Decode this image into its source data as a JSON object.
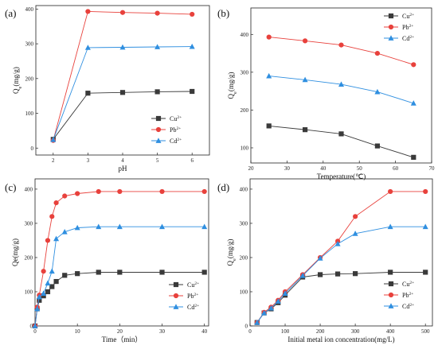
{
  "chart_data": [
    {
      "panel": "(a)",
      "type": "line",
      "xlabel": "pH",
      "ylabel": "Q",
      "ylabel_sub": "e",
      "ylabel_unit": "(mg/g)",
      "xlim": [
        1.5,
        6.5
      ],
      "ylim": [
        -20,
        410
      ],
      "xticks": [
        "2",
        "3",
        "4",
        "5",
        "6"
      ],
      "yticks": [
        "0",
        "100",
        "200",
        "300",
        "400"
      ],
      "legend_position": "bottom-right",
      "series": [
        {
          "name": "Cu",
          "sup": "2+",
          "marker": "square",
          "color": "#3a3a3a",
          "x": [
            2,
            3,
            4,
            5,
            6
          ],
          "y": [
            25,
            158,
            160,
            162,
            163
          ]
        },
        {
          "name": "Pb",
          "sup": "2+",
          "marker": "circle",
          "color": "#e8413c",
          "x": [
            2,
            3,
            4,
            5,
            6
          ],
          "y": [
            22,
            393,
            390,
            388,
            385
          ]
        },
        {
          "name": "Cd",
          "sup": "2+",
          "marker": "triangle",
          "color": "#2f8fe0",
          "x": [
            2,
            3,
            4,
            5,
            6
          ],
          "y": [
            24,
            289,
            290,
            291,
            292
          ]
        }
      ]
    },
    {
      "panel": "(b)",
      "type": "line",
      "xlabel": "Temperature(℃)",
      "ylabel": "Q",
      "ylabel_sub": "e",
      "ylabel_unit": "(mg/g)",
      "xlim": [
        20,
        70
      ],
      "ylim": [
        60,
        470
      ],
      "xticks": [
        "20",
        "30",
        "40",
        "50",
        "60",
        "70"
      ],
      "yticks": [
        "100",
        "200",
        "300",
        "400"
      ],
      "legend_position": "top-right",
      "series": [
        {
          "name": "Cu",
          "sup": "2+",
          "marker": "square",
          "color": "#3a3a3a",
          "x": [
            25,
            35,
            45,
            55,
            65
          ],
          "y": [
            158,
            148,
            137,
            105,
            75
          ]
        },
        {
          "name": "Pb",
          "sup": "2+",
          "marker": "circle",
          "color": "#e8413c",
          "x": [
            25,
            35,
            45,
            55,
            65
          ],
          "y": [
            393,
            383,
            372,
            350,
            320
          ]
        },
        {
          "name": "Cd",
          "sup": "2+",
          "marker": "triangle",
          "color": "#2f8fe0",
          "x": [
            25,
            35,
            45,
            55,
            65
          ],
          "y": [
            290,
            280,
            268,
            248,
            218
          ]
        }
      ]
    },
    {
      "panel": "(c)",
      "type": "line",
      "xlabel": "Time（min）",
      "ylabel": "Qe(mg/g)",
      "ylabel_sub": "",
      "ylabel_unit": "",
      "xlim": [
        0,
        41
      ],
      "ylim": [
        0,
        430
      ],
      "xticks": [
        "0",
        "10",
        "20",
        "30",
        "40"
      ],
      "yticks": [
        "0",
        "100",
        "200",
        "300",
        "400"
      ],
      "legend_position": "bottom-right",
      "series": [
        {
          "name": "Cu",
          "sup": "2+",
          "marker": "square",
          "color": "#3a3a3a",
          "x": [
            0,
            0.5,
            1,
            2,
            3,
            4,
            5,
            7,
            10,
            15,
            20,
            30,
            40
          ],
          "y": [
            0,
            50,
            75,
            88,
            100,
            115,
            130,
            148,
            153,
            157,
            157,
            157,
            157
          ]
        },
        {
          "name": "Pb",
          "sup": "2+",
          "marker": "circle",
          "color": "#e8413c",
          "x": [
            0,
            0.5,
            1,
            2,
            3,
            4,
            5,
            7,
            10,
            15,
            20,
            30,
            40
          ],
          "y": [
            0,
            55,
            90,
            160,
            250,
            320,
            360,
            380,
            387,
            393,
            393,
            393,
            393
          ]
        },
        {
          "name": "Cd",
          "sup": "2+",
          "marker": "triangle",
          "color": "#2f8fe0",
          "x": [
            0,
            0.5,
            1,
            2,
            3,
            4,
            5,
            7,
            10,
            15,
            20,
            30,
            40
          ],
          "y": [
            0,
            50,
            85,
            95,
            125,
            160,
            255,
            275,
            287,
            290,
            290,
            290,
            290
          ]
        }
      ]
    },
    {
      "panel": "(d)",
      "type": "line",
      "xlabel": "Initial metal ion concentration(mg/L)",
      "ylabel": "Q",
      "ylabel_sub": "e",
      "ylabel_unit": "(mg/g)",
      "xlim": [
        0,
        520
      ],
      "ylim": [
        0,
        430
      ],
      "xticks": [
        "0",
        "100",
        "200",
        "300",
        "400",
        "500"
      ],
      "yticks": [
        "0",
        "100",
        "200",
        "300",
        "400"
      ],
      "legend_position": "bottom-right",
      "series": [
        {
          "name": "Cu",
          "sup": "2+",
          "marker": "square",
          "color": "#3a3a3a",
          "x": [
            20,
            40,
            60,
            80,
            100,
            150,
            200,
            250,
            300,
            400,
            500
          ],
          "y": [
            10,
            38,
            50,
            68,
            90,
            143,
            150,
            152,
            153,
            157,
            157
          ]
        },
        {
          "name": "Pb",
          "sup": "2+",
          "marker": "circle",
          "color": "#e8413c",
          "x": [
            20,
            40,
            60,
            80,
            100,
            150,
            200,
            250,
            300,
            400,
            500
          ],
          "y": [
            10,
            40,
            55,
            75,
            100,
            150,
            200,
            248,
            320,
            393,
            393
          ]
        },
        {
          "name": "Cd",
          "sup": "2+",
          "marker": "triangle",
          "color": "#2f8fe0",
          "x": [
            20,
            40,
            60,
            80,
            100,
            150,
            200,
            250,
            300,
            400,
            500
          ],
          "y": [
            10,
            38,
            52,
            72,
            95,
            147,
            198,
            240,
            270,
            290,
            290
          ]
        }
      ]
    }
  ]
}
